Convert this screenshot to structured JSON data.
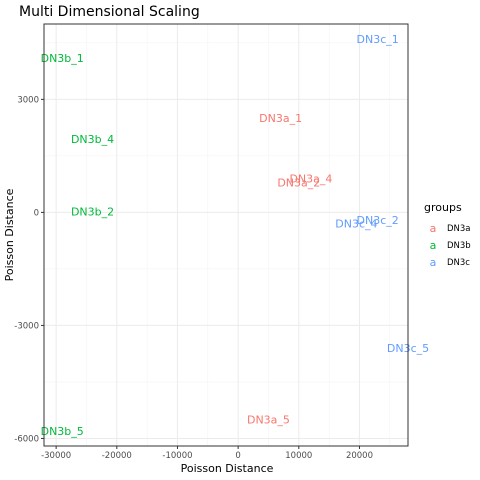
{
  "chart_data": {
    "type": "scatter",
    "title": "Multi Dimensional Scaling",
    "xlabel": "Poisson Distance",
    "ylabel": "Poisson Distance",
    "xlim": [
      -32000,
      28000
    ],
    "ylim": [
      -6200,
      5000
    ],
    "x_ticks": [
      {
        "value": -30000,
        "label": "-30000"
      },
      {
        "value": -20000,
        "label": "-20000"
      },
      {
        "value": -10000,
        "label": "-10000"
      },
      {
        "value": 0,
        "label": "0"
      },
      {
        "value": 10000,
        "label": "10000"
      },
      {
        "value": 20000,
        "label": "20000"
      }
    ],
    "y_ticks": [
      {
        "value": -6000,
        "label": "-6000"
      },
      {
        "value": -3000,
        "label": "-3000"
      },
      {
        "value": 0,
        "label": "0"
      },
      {
        "value": 3000,
        "label": "3000"
      }
    ],
    "grid": true,
    "legend_position": "right",
    "legend_title": "groups",
    "legend_key_glyph": "a",
    "series": [
      {
        "name": "DN3a",
        "color": "#F8766D",
        "points": [
          {
            "label": "DN3a_1",
            "x": 7000,
            "y": 2500
          },
          {
            "label": "DN3a_4",
            "x": 12000,
            "y": 900
          },
          {
            "label": "DN3a_2",
            "x": 10000,
            "y": 800
          },
          {
            "label": "DN3a_5",
            "x": 5000,
            "y": -5500
          }
        ]
      },
      {
        "name": "DN3b",
        "color": "#00BA38",
        "points": [
          {
            "label": "DN3b_1",
            "x": -29000,
            "y": 4100
          },
          {
            "label": "DN3b_4",
            "x": -24000,
            "y": 1950
          },
          {
            "label": "DN3b_2",
            "x": -24000,
            "y": 30
          },
          {
            "label": "DN3b_5",
            "x": -29000,
            "y": -5800
          }
        ]
      },
      {
        "name": "DN3c",
        "color": "#619CFF",
        "points": [
          {
            "label": "DN3c_1",
            "x": 23000,
            "y": 4600
          },
          {
            "label": "DN3c_2",
            "x": 23000,
            "y": -200
          },
          {
            "label": "DN3c_4",
            "x": 19500,
            "y": -300
          },
          {
            "label": "DN3c_5",
            "x": 28000,
            "y": -3600
          }
        ]
      }
    ]
  }
}
